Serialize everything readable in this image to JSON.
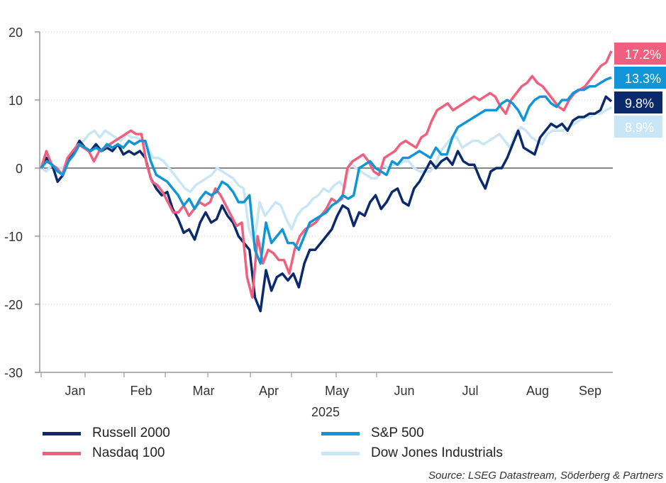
{
  "chart_data": {
    "type": "line",
    "title": "",
    "xlabel": "2025",
    "ylabel": "",
    "ylim": [
      -30,
      20
    ],
    "yticks": [
      20,
      10,
      0,
      -10,
      -20,
      -30
    ],
    "ytick_labels": [
      "20",
      "10",
      "0",
      "-10",
      "-20",
      "-30"
    ],
    "xtick_labels": [
      "Jan",
      "Feb",
      "Mar",
      "Apr",
      "May",
      "Jun",
      "Jul",
      "Aug",
      "Sep"
    ],
    "grid": "horizontal dotted",
    "x_period": "2025-01-02 to 2025-09-26 (daily, sampled)",
    "series": [
      {
        "name": "Russell 2000",
        "color": "#0a2a6b",
        "end_label": "9.8%",
        "values": [
          0,
          1.5,
          0.5,
          -2,
          -1,
          1.5,
          2.5,
          4,
          3,
          2.5,
          3.5,
          2.5,
          3,
          2.5,
          3.5,
          2,
          2.5,
          2,
          2.5,
          1.5,
          -1.5,
          -3,
          -4,
          -3.5,
          -6,
          -7.5,
          -9.5,
          -9,
          -10.5,
          -8,
          -6.5,
          -8,
          -7.5,
          -5.5,
          -7,
          -8,
          -10,
          -11,
          -12,
          -19,
          -21,
          -15,
          -18,
          -16,
          -15.5,
          -16.5,
          -15.5,
          -17.5,
          -14,
          -12,
          -12,
          -11,
          -10,
          -9,
          -7,
          -5.5,
          -6,
          -8.5,
          -6.5,
          -7,
          -5,
          -4,
          -6,
          -5,
          -3.5,
          -3,
          -5,
          -5.5,
          -3,
          -2,
          -0.5,
          1,
          0,
          1,
          1.5,
          0.5,
          2.5,
          1,
          0.5,
          0.5,
          -1.5,
          -3,
          -0.5,
          0,
          0,
          1.5,
          3.5,
          5.5,
          3,
          2.5,
          2,
          4.5,
          5.5,
          6.5,
          6,
          6.5,
          5.5,
          7,
          7.5,
          7.5,
          8,
          8,
          8.5,
          10.5,
          9.8
        ]
      },
      {
        "name": "S&P 500",
        "color": "#1096d7",
        "end_label": "13.3%",
        "values": [
          0,
          1,
          0.5,
          -0.5,
          -1,
          1,
          2,
          3.5,
          3,
          2.5,
          3,
          2.5,
          3.5,
          3,
          3.5,
          3,
          4,
          3.5,
          4,
          4,
          1,
          -1,
          -1.5,
          -2,
          -3,
          -4,
          -5.5,
          -4.5,
          -6,
          -4.5,
          -3.5,
          -4,
          -3.5,
          -2,
          -2.5,
          -3.5,
          -5,
          -5,
          -4,
          -12,
          -14,
          -8,
          -11,
          -10,
          -9,
          -11,
          -11,
          -12,
          -10,
          -8,
          -7.5,
          -7,
          -6.5,
          -5.5,
          -5,
          -4,
          -4.5,
          -4,
          0,
          0.5,
          1,
          0,
          -0.5,
          -1,
          1,
          0.5,
          1.5,
          1.5,
          2,
          2.5,
          2,
          1.5,
          3,
          2,
          2,
          4.5,
          6,
          6.5,
          7,
          7.5,
          8,
          8.5,
          8.5,
          8.5,
          9.5,
          10,
          9.5,
          8.5,
          7,
          9,
          10,
          10.5,
          10.5,
          9.5,
          9,
          10,
          10,
          11,
          11.5,
          11.5,
          12,
          12,
          12.5,
          13,
          13.3
        ]
      },
      {
        "name": "Nasdaq 100",
        "color": "#f0607e",
        "end_label": "17.2%",
        "values": [
          0,
          2.5,
          0.5,
          0,
          -1,
          1.5,
          2.5,
          3.5,
          3,
          2.5,
          1,
          2.5,
          3,
          3.5,
          4,
          4.5,
          5,
          5.5,
          5,
          5,
          0.5,
          -2,
          -2.5,
          -3.5,
          -5,
          -6.5,
          -6.5,
          -5.5,
          -7,
          -6,
          -5,
          -5.5,
          -5,
          -3,
          -4,
          -5.5,
          -7,
          -8.5,
          -8,
          -16,
          -19,
          -10,
          -14,
          -12,
          -12.5,
          -13.5,
          -13.5,
          -15.5,
          -12,
          -10,
          -9,
          -8.5,
          -8,
          -7,
          -6,
          -4.5,
          -5,
          -4.5,
          0,
          1,
          1.5,
          2,
          1,
          -0.5,
          -1,
          1.5,
          2,
          2.5,
          3.5,
          4,
          3.5,
          3,
          4.5,
          5,
          7,
          8.5,
          9,
          9.5,
          8.5,
          9,
          9.5,
          10,
          10.5,
          10,
          10.5,
          11,
          10.5,
          9,
          8,
          10,
          11,
          12,
          12.5,
          13.5,
          12.5,
          12,
          11,
          10,
          9,
          8.5,
          10,
          11,
          11.5,
          12,
          13,
          14,
          15,
          15.5,
          17.2
        ]
      },
      {
        "name": "Dow Jones Industrials",
        "color": "#c9e6f7",
        "end_label": "8.9%",
        "values": [
          0,
          -0.5,
          0.5,
          0,
          0,
          1,
          2,
          3.5,
          4,
          5,
          5.5,
          4.5,
          5.5,
          5,
          4.5,
          4,
          5,
          4.5,
          4.5,
          4,
          3,
          1.5,
          1.5,
          1,
          0,
          -1,
          -2,
          -3,
          -3.5,
          -2.5,
          -2,
          -1.5,
          -1,
          0,
          -0.5,
          -1,
          -1.5,
          -2.5,
          -3,
          -9,
          -11,
          -5,
          -7,
          -6,
          -5,
          -5.5,
          -7.5,
          -9,
          -7,
          -6,
          -5.5,
          -4.5,
          -4,
          -3,
          -3.5,
          -2.5,
          -2,
          -3,
          1,
          0,
          -0.5,
          -1,
          -1.5,
          -1.5,
          0.5,
          0,
          0.5,
          0.5,
          1,
          1,
          0,
          -0.5,
          -0.5,
          -0.5,
          0.5,
          2.5,
          3.5,
          4.5,
          4.5,
          3,
          3.5,
          4,
          4,
          3.5,
          4,
          4.5,
          5,
          4,
          3,
          5,
          6,
          5.5,
          4.5,
          4,
          3.5,
          5,
          5.5,
          5.5,
          5.5,
          6,
          6.5,
          7,
          7.5,
          7.5,
          8,
          8,
          8.5,
          8.9
        ]
      }
    ]
  },
  "legend": {
    "items": [
      {
        "label": "Russell 2000",
        "color": "#0a2a6b"
      },
      {
        "label": "S&P 500",
        "color": "#1096d7"
      },
      {
        "label": "Nasdaq 100",
        "color": "#f0607e"
      },
      {
        "label": "Dow Jones Industrials",
        "color": "#c9e6f7"
      }
    ]
  },
  "source": "Source: LSEG Datastream, Söderberg & Partners"
}
